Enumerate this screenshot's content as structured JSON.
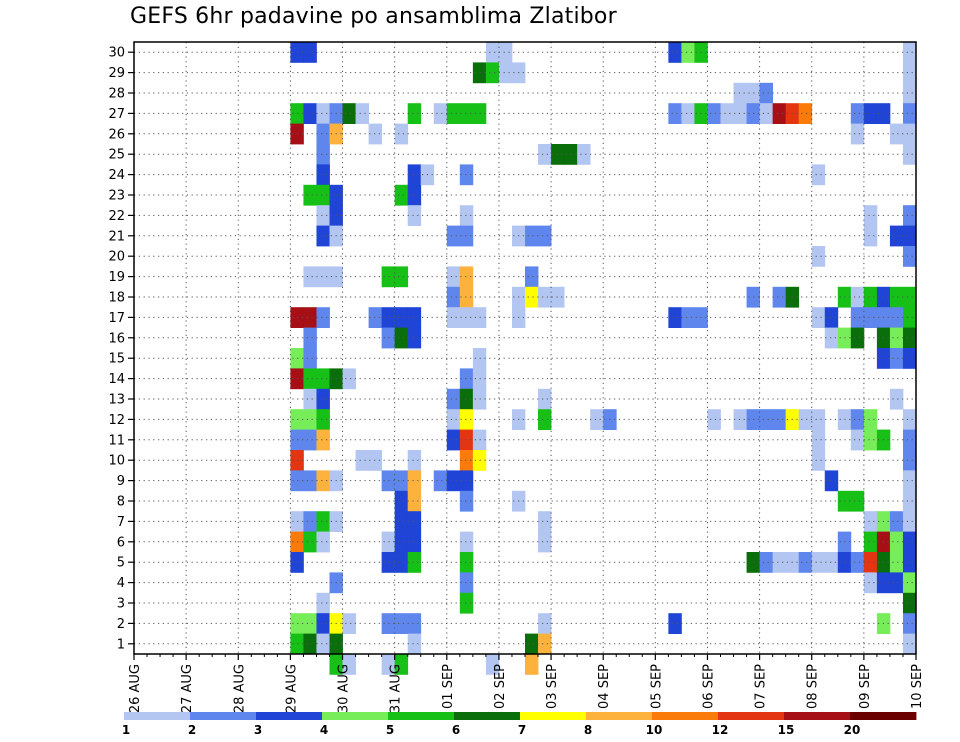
{
  "chart_data": {
    "type": "heatmap",
    "title": "GEFS 6hr padavine po ansamblima Zlatibor",
    "xlabel": "",
    "ylabel": "",
    "x_tick_labels": [
      "26 AUG",
      "27 AUG",
      "28 AUG",
      "29 AUG",
      "30 AUG",
      "31 AUG",
      "01 SEP",
      "02 SEP",
      "03 SEP",
      "04 SEP",
      "05 SEP",
      "06 SEP",
      "07 SEP",
      "08 SEP",
      "09 SEP",
      "10 SEP"
    ],
    "x_range_steps": [
      0,
      60
    ],
    "y_tick_labels": [
      "1",
      "2",
      "3",
      "4",
      "5",
      "6",
      "7",
      "8",
      "9",
      "10",
      "11",
      "12",
      "13",
      "14",
      "15",
      "16",
      "17",
      "18",
      "19",
      "20",
      "21",
      "22",
      "23",
      "24",
      "25",
      "26",
      "27",
      "28",
      "29",
      "30"
    ],
    "y_range": [
      0.5,
      30.5
    ],
    "grid": true,
    "colorbar": {
      "placement": "bottom",
      "labels": [
        "1",
        "2",
        "3",
        "4",
        "5",
        "6",
        "7",
        "8",
        "10",
        "12",
        "15",
        "20"
      ],
      "colors": [
        "#b3c6f2",
        "#5f86ec",
        "#1f44d6",
        "#78ed5a",
        "#16c016",
        "#0a6e0a",
        "#ffff00",
        "#fcb23c",
        "#fa7a0a",
        "#e43513",
        "#a50f15",
        "#6b0000"
      ]
    },
    "cells_note": "each cell: [time step (6h steps from 26 AUG 00Z), ensemble member, colorbar class index 0-11]",
    "cells": [
      [
        12,
        30,
        2
      ],
      [
        12,
        27,
        4
      ],
      [
        12,
        26,
        10
      ],
      [
        12,
        17,
        10
      ],
      [
        12,
        15,
        3
      ],
      [
        12,
        14,
        10
      ],
      [
        12,
        12,
        3
      ],
      [
        12,
        11,
        1
      ],
      [
        12,
        10,
        9
      ],
      [
        12,
        9,
        1
      ],
      [
        12,
        7,
        0
      ],
      [
        12,
        6,
        8
      ],
      [
        12,
        5,
        2
      ],
      [
        12,
        2,
        3
      ],
      [
        12,
        1,
        4
      ],
      [
        13,
        30,
        2
      ],
      [
        13,
        27,
        2
      ],
      [
        13,
        23,
        4
      ],
      [
        13,
        19,
        0
      ],
      [
        13,
        17,
        10
      ],
      [
        13,
        16,
        1
      ],
      [
        13,
        15,
        1
      ],
      [
        13,
        14,
        4
      ],
      [
        13,
        13,
        0
      ],
      [
        13,
        12,
        3
      ],
      [
        13,
        11,
        1
      ],
      [
        13,
        9,
        1
      ],
      [
        13,
        7,
        1
      ],
      [
        13,
        6,
        4
      ],
      [
        13,
        2,
        3
      ],
      [
        13,
        1,
        5
      ],
      [
        14,
        27,
        0
      ],
      [
        14,
        26,
        1
      ],
      [
        14,
        25,
        1
      ],
      [
        14,
        24,
        2
      ],
      [
        14,
        23,
        4
      ],
      [
        14,
        22,
        0
      ],
      [
        14,
        21,
        2
      ],
      [
        14,
        19,
        0
      ],
      [
        14,
        17,
        1
      ],
      [
        14,
        14,
        4
      ],
      [
        14,
        13,
        2
      ],
      [
        14,
        12,
        4
      ],
      [
        14,
        11,
        7
      ],
      [
        14,
        9,
        7
      ],
      [
        14,
        7,
        4
      ],
      [
        14,
        6,
        0
      ],
      [
        14,
        3,
        0
      ],
      [
        14,
        2,
        2
      ],
      [
        14,
        1,
        0
      ],
      [
        15,
        27,
        1
      ],
      [
        15,
        26,
        7
      ],
      [
        15,
        23,
        2
      ],
      [
        15,
        22,
        2
      ],
      [
        15,
        21,
        0
      ],
      [
        15,
        19,
        0
      ],
      [
        15,
        14,
        5
      ],
      [
        15,
        9,
        0
      ],
      [
        15,
        7,
        0
      ],
      [
        15,
        4,
        1
      ],
      [
        15,
        2,
        6
      ],
      [
        15,
        1,
        5
      ],
      [
        15,
        0,
        4
      ],
      [
        16,
        27,
        5
      ],
      [
        16,
        14,
        0
      ],
      [
        16,
        2,
        0
      ],
      [
        16,
        0,
        0
      ],
      [
        17,
        27,
        0
      ],
      [
        17,
        10,
        0
      ],
      [
        18,
        26,
        0
      ],
      [
        18,
        17,
        1
      ],
      [
        18,
        10,
        0
      ],
      [
        19,
        19,
        4
      ],
      [
        19,
        17,
        2
      ],
      [
        19,
        16,
        1
      ],
      [
        19,
        9,
        1
      ],
      [
        19,
        6,
        0
      ],
      [
        19,
        5,
        2
      ],
      [
        19,
        2,
        1
      ],
      [
        19,
        0,
        0
      ],
      [
        20,
        26,
        0
      ],
      [
        20,
        23,
        4
      ],
      [
        20,
        19,
        4
      ],
      [
        20,
        17,
        2
      ],
      [
        20,
        16,
        5
      ],
      [
        20,
        9,
        1
      ],
      [
        20,
        8,
        2
      ],
      [
        20,
        7,
        2
      ],
      [
        20,
        6,
        2
      ],
      [
        20,
        5,
        2
      ],
      [
        20,
        2,
        1
      ],
      [
        20,
        0,
        4
      ],
      [
        21,
        27,
        4
      ],
      [
        21,
        23,
        2
      ],
      [
        21,
        22,
        0
      ],
      [
        21,
        24,
        2
      ],
      [
        21,
        17,
        2
      ],
      [
        21,
        16,
        2
      ],
      [
        21,
        10,
        0
      ],
      [
        21,
        9,
        7
      ],
      [
        21,
        8,
        7
      ],
      [
        21,
        7,
        2
      ],
      [
        21,
        6,
        2
      ],
      [
        21,
        5,
        4
      ],
      [
        21,
        2,
        1
      ],
      [
        21,
        1,
        0
      ],
      [
        22,
        24,
        0
      ],
      [
        23,
        27,
        0
      ],
      [
        23,
        9,
        1
      ],
      [
        24,
        27,
        4
      ],
      [
        24,
        21,
        1
      ],
      [
        24,
        19,
        0
      ],
      [
        24,
        18,
        1
      ],
      [
        24,
        17,
        0
      ],
      [
        24,
        13,
        1
      ],
      [
        24,
        12,
        0
      ],
      [
        24,
        11,
        2
      ],
      [
        24,
        9,
        2
      ],
      [
        25,
        27,
        4
      ],
      [
        25,
        24,
        1
      ],
      [
        25,
        22,
        0
      ],
      [
        25,
        21,
        1
      ],
      [
        25,
        19,
        7
      ],
      [
        25,
        18,
        7
      ],
      [
        25,
        17,
        0
      ],
      [
        25,
        14,
        1
      ],
      [
        25,
        13,
        5
      ],
      [
        25,
        12,
        6
      ],
      [
        25,
        11,
        9
      ],
      [
        25,
        10,
        8
      ],
      [
        25,
        9,
        2
      ],
      [
        25,
        8,
        1
      ],
      [
        25,
        6,
        0
      ],
      [
        25,
        5,
        4
      ],
      [
        25,
        4,
        1
      ],
      [
        25,
        3,
        4
      ],
      [
        26,
        29,
        5
      ],
      [
        26,
        27,
        4
      ],
      [
        26,
        17,
        0
      ],
      [
        26,
        15,
        0
      ],
      [
        26,
        14,
        0
      ],
      [
        26,
        13,
        0
      ],
      [
        26,
        11,
        0
      ],
      [
        26,
        10,
        6
      ],
      [
        27,
        30,
        0
      ],
      [
        27,
        29,
        4
      ],
      [
        27,
        0,
        0
      ],
      [
        28,
        30,
        0
      ],
      [
        28,
        29,
        0
      ],
      [
        29,
        29,
        0
      ],
      [
        29,
        21,
        0
      ],
      [
        29,
        18,
        0
      ],
      [
        29,
        17,
        0
      ],
      [
        29,
        12,
        0
      ],
      [
        29,
        8,
        0
      ],
      [
        30,
        21,
        1
      ],
      [
        30,
        19,
        1
      ],
      [
        30,
        18,
        6
      ],
      [
        30,
        1,
        5
      ],
      [
        30,
        0,
        7
      ],
      [
        31,
        25,
        0
      ],
      [
        31,
        21,
        1
      ],
      [
        31,
        18,
        0
      ],
      [
        31,
        13,
        0
      ],
      [
        31,
        12,
        4
      ],
      [
        31,
        7,
        0
      ],
      [
        31,
        6,
        0
      ],
      [
        31,
        2,
        0
      ],
      [
        31,
        1,
        7
      ],
      [
        32,
        25,
        5
      ],
      [
        32,
        18,
        0
      ],
      [
        33,
        25,
        5
      ],
      [
        34,
        25,
        0
      ],
      [
        35,
        12,
        0
      ],
      [
        36,
        12,
        1
      ],
      [
        41,
        30,
        2
      ],
      [
        41,
        27,
        1
      ],
      [
        41,
        17,
        2
      ],
      [
        41,
        2,
        2
      ],
      [
        42,
        30,
        3
      ],
      [
        42,
        27,
        0
      ],
      [
        42,
        17,
        1
      ],
      [
        43,
        30,
        4
      ],
      [
        43,
        27,
        4
      ],
      [
        43,
        17,
        1
      ],
      [
        44,
        27,
        1
      ],
      [
        44,
        12,
        0
      ],
      [
        45,
        27,
        0
      ],
      [
        46,
        28,
        0
      ],
      [
        46,
        27,
        0
      ],
      [
        46,
        12,
        0
      ],
      [
        47,
        28,
        0
      ],
      [
        47,
        27,
        1
      ],
      [
        47,
        18,
        1
      ],
      [
        47,
        12,
        1
      ],
      [
        47,
        5,
        5
      ],
      [
        48,
        28,
        1
      ],
      [
        48,
        27,
        0
      ],
      [
        48,
        12,
        1
      ],
      [
        48,
        5,
        1
      ],
      [
        49,
        27,
        10
      ],
      [
        49,
        18,
        1
      ],
      [
        49,
        12,
        1
      ],
      [
        49,
        5,
        0
      ],
      [
        50,
        27,
        9
      ],
      [
        50,
        18,
        5
      ],
      [
        50,
        12,
        6
      ],
      [
        50,
        5,
        0
      ],
      [
        51,
        27,
        8
      ],
      [
        51,
        12,
        0
      ],
      [
        51,
        5,
        1
      ],
      [
        52,
        24,
        0
      ],
      [
        52,
        20,
        0
      ],
      [
        52,
        17,
        0
      ],
      [
        52,
        11,
        0
      ],
      [
        52,
        12,
        0
      ],
      [
        52,
        10,
        0
      ],
      [
        52,
        5,
        0
      ],
      [
        53,
        17,
        2
      ],
      [
        53,
        9,
        2
      ],
      [
        53,
        16,
        0
      ],
      [
        53,
        5,
        0
      ],
      [
        54,
        18,
        4
      ],
      [
        54,
        16,
        3
      ],
      [
        54,
        12,
        0
      ],
      [
        54,
        8,
        4
      ],
      [
        54,
        6,
        1
      ],
      [
        54,
        5,
        2
      ],
      [
        55,
        27,
        1
      ],
      [
        55,
        26,
        0
      ],
      [
        55,
        18,
        0
      ],
      [
        55,
        17,
        1
      ],
      [
        55,
        16,
        5
      ],
      [
        55,
        12,
        1
      ],
      [
        55,
        11,
        0
      ],
      [
        55,
        8,
        4
      ],
      [
        55,
        5,
        1
      ],
      [
        56,
        27,
        2
      ],
      [
        56,
        22,
        0
      ],
      [
        56,
        21,
        0
      ],
      [
        56,
        18,
        4
      ],
      [
        56,
        17,
        1
      ],
      [
        56,
        12,
        3
      ],
      [
        56,
        11,
        3
      ],
      [
        56,
        7,
        0
      ],
      [
        56,
        6,
        4
      ],
      [
        56,
        5,
        9
      ],
      [
        56,
        4,
        0
      ],
      [
        57,
        27,
        2
      ],
      [
        57,
        18,
        2
      ],
      [
        57,
        17,
        1
      ],
      [
        57,
        16,
        5
      ],
      [
        57,
        15,
        2
      ],
      [
        57,
        11,
        4
      ],
      [
        57,
        7,
        3
      ],
      [
        57,
        6,
        10
      ],
      [
        57,
        5,
        5
      ],
      [
        57,
        4,
        2
      ],
      [
        57,
        2,
        3
      ],
      [
        58,
        26,
        0
      ],
      [
        58,
        21,
        2
      ],
      [
        58,
        18,
        4
      ],
      [
        58,
        17,
        1
      ],
      [
        58,
        16,
        3
      ],
      [
        58,
        15,
        1
      ],
      [
        58,
        13,
        0
      ],
      [
        58,
        7,
        1
      ],
      [
        58,
        6,
        3
      ],
      [
        58,
        5,
        3
      ],
      [
        58,
        4,
        2
      ],
      [
        59,
        30,
        0
      ],
      [
        59,
        29,
        0
      ],
      [
        59,
        28,
        0
      ],
      [
        59,
        27,
        1
      ],
      [
        59,
        26,
        0
      ],
      [
        59,
        25,
        0
      ],
      [
        59,
        22,
        1
      ],
      [
        59,
        21,
        2
      ],
      [
        59,
        20,
        1
      ],
      [
        59,
        18,
        4
      ],
      [
        59,
        17,
        4
      ],
      [
        59,
        16,
        5
      ],
      [
        59,
        15,
        2
      ],
      [
        59,
        12,
        0
      ],
      [
        59,
        11,
        1
      ],
      [
        59,
        10,
        1
      ],
      [
        59,
        9,
        0
      ],
      [
        59,
        8,
        0
      ],
      [
        59,
        7,
        0
      ],
      [
        59,
        6,
        2
      ],
      [
        59,
        5,
        2
      ],
      [
        59,
        4,
        3
      ],
      [
        59,
        3,
        5
      ],
      [
        59,
        2,
        1
      ],
      [
        59,
        1,
        0
      ]
    ]
  }
}
